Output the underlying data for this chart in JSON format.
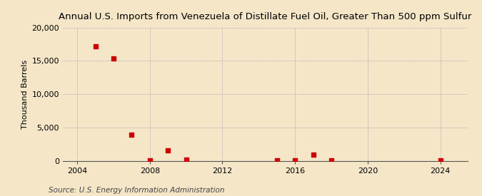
{
  "title": "Annual U.S. Imports from Venezuela of Distillate Fuel Oil, Greater Than 500 ppm Sulfur",
  "ylabel": "Thousand Barrels",
  "source": "Source: U.S. Energy Information Administration",
  "background_color": "#f5e6c8",
  "marker_color": "#cc0000",
  "data_points": {
    "2005": 17200,
    "2006": 15400,
    "2007": 3900,
    "2008": 80,
    "2009": 1500,
    "2010": 150,
    "2015": 100,
    "2016": 100,
    "2017": 900,
    "2018": 100,
    "2024": 100
  },
  "xlim": [
    2003.2,
    2025.5
  ],
  "ylim": [
    0,
    20000
  ],
  "xticks": [
    2004,
    2008,
    2012,
    2016,
    2020,
    2024
  ],
  "yticks": [
    0,
    5000,
    10000,
    15000,
    20000
  ],
  "title_fontsize": 9.5,
  "axis_fontsize": 8,
  "source_fontsize": 7.5,
  "grid_color": "#b0b0b0",
  "spine_color": "#555555"
}
